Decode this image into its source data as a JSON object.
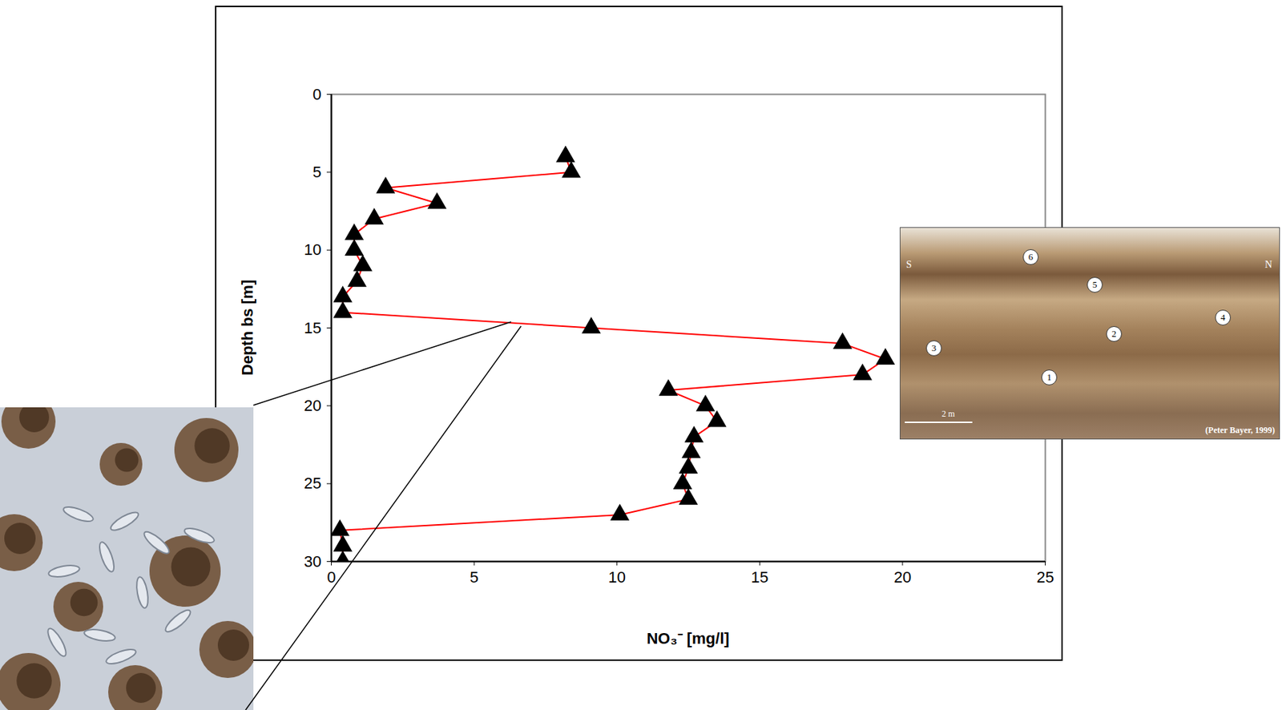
{
  "chart_data": {
    "type": "line",
    "marker": "triangle",
    "color": "#ff0000",
    "x_label": "NO₃⁻ [mg/l]",
    "y_label": "Depth bs  [m]",
    "x": [
      8.2,
      8.4,
      1.9,
      3.7,
      1.5,
      0.8,
      0.8,
      1.1,
      0.9,
      0.4,
      0.4,
      9.1,
      17.9,
      19.4,
      18.6,
      11.8,
      13.1,
      13.5,
      12.7,
      12.6,
      12.5,
      12.3,
      12.5,
      10.1,
      0.3,
      0.4,
      0.4
    ],
    "y": [
      4,
      5,
      6,
      7,
      8,
      9,
      10,
      11,
      12,
      13,
      14,
      15,
      16,
      17,
      18,
      19,
      20,
      21,
      22,
      23,
      24,
      25,
      26,
      27,
      28,
      29,
      30
    ],
    "xlim": [
      0,
      25
    ],
    "xticks": [
      0,
      5,
      10,
      15,
      20,
      25
    ],
    "ylim": [
      30,
      0
    ],
    "yticks": [
      0,
      5,
      10,
      15,
      20,
      25,
      30
    ],
    "grid": false,
    "annotations": [
      "6",
      "5",
      "4",
      "2",
      "3",
      "1",
      "S",
      "N",
      "2 m",
      "(Peter Bayer, 1999)"
    ]
  }
}
